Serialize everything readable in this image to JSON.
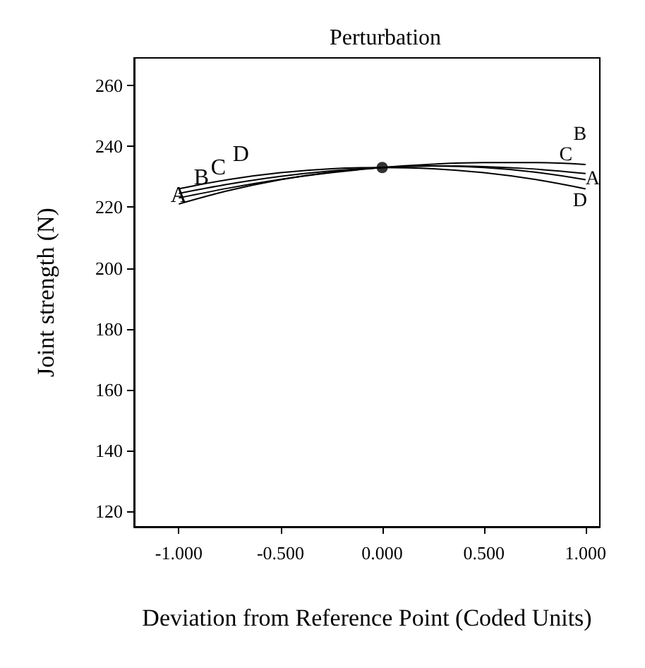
{
  "chart_data": {
    "type": "line",
    "title": "Perturbation",
    "xlabel": "Deviation from Reference Point (Coded Units)",
    "ylabel": "Joint strength (N)",
    "x": [
      -1,
      -0.75,
      -0.5,
      -0.25,
      0,
      0.25,
      0.5,
      0.75,
      1
    ],
    "series": [
      {
        "name": "A",
        "color": "#000000",
        "values": [
          221,
          225.5,
          229,
          231.5,
          233,
          233.5,
          233,
          231.5,
          229
        ]
      },
      {
        "name": "B",
        "color": "#000000",
        "values": [
          223,
          226.3,
          229.1,
          231.3,
          233,
          234.1,
          234.6,
          234.6,
          234
        ]
      },
      {
        "name": "C",
        "color": "#000000",
        "values": [
          224.5,
          227.6,
          230.1,
          231.9,
          233,
          233.5,
          233.3,
          232.5,
          231
        ]
      },
      {
        "name": "D",
        "color": "#000000",
        "values": [
          226,
          229.1,
          231.3,
          232.6,
          233,
          232.6,
          231.3,
          229.1,
          226
        ]
      },
      {
        "type": "scatter",
        "color": "#000000",
        "marker": "circle",
        "x": [
          0
        ],
        "values": [
          233
        ]
      }
    ],
    "line_style": "solid",
    "grid": false,
    "legend": false,
    "xlim": [
      -1.22,
      1.07
    ],
    "xticks": [
      {
        "value": -1,
        "label": "-1.000"
      },
      {
        "value": -0.5,
        "label": "-0.500"
      },
      {
        "value": 0,
        "label": "0.000"
      },
      {
        "value": 0.5,
        "label": "0.500"
      },
      {
        "value": 1,
        "label": "1.000"
      }
    ],
    "ylim": [
      115,
      269
    ],
    "yticks": [
      120,
      140,
      160,
      180,
      200,
      220,
      240,
      260
    ]
  }
}
